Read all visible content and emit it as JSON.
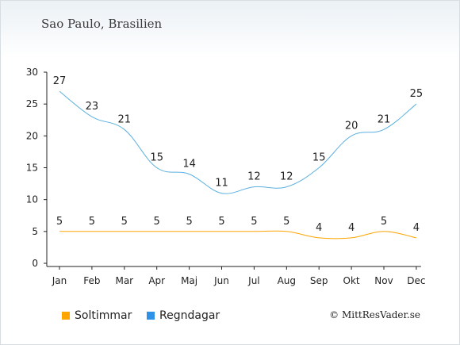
{
  "chart_data": {
    "type": "line",
    "title": "Sao Paulo, Brasilien",
    "categories": [
      "Jan",
      "Feb",
      "Mar",
      "Apr",
      "Maj",
      "Jun",
      "Jul",
      "Aug",
      "Sep",
      "Okt",
      "Nov",
      "Dec"
    ],
    "ylim": [
      0,
      30
    ],
    "yticks": [
      0,
      5,
      10,
      15,
      20,
      25,
      30
    ],
    "grid": false,
    "legend_position": "bottom-left",
    "series": [
      {
        "name": "Soltimmar",
        "color": "#ffa500",
        "values": [
          5,
          5,
          5,
          5,
          5,
          5,
          5,
          5,
          4,
          4,
          5,
          4
        ]
      },
      {
        "name": "Regndagar",
        "color": "#2d92e8",
        "line_color": "#5bb0e0",
        "values": [
          27,
          23,
          21,
          15,
          14,
          11,
          12,
          12,
          15,
          20,
          21,
          25
        ]
      }
    ]
  },
  "credit": "© MittResVader.se"
}
